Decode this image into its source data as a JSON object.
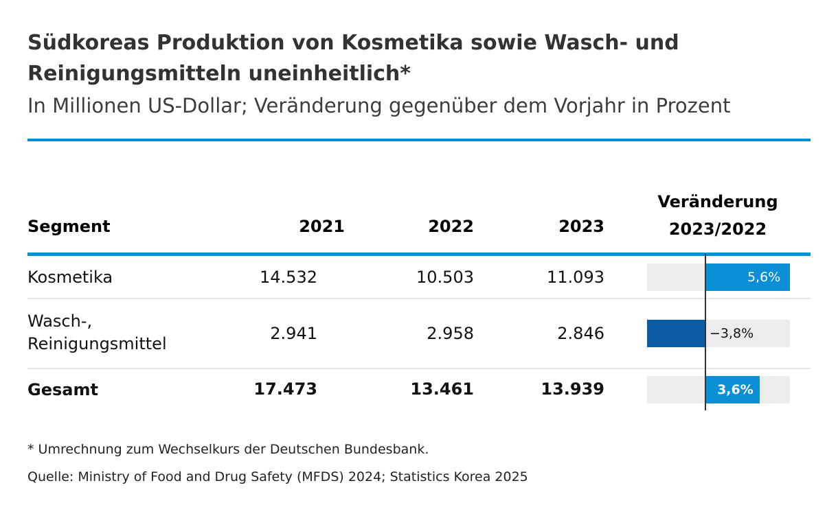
{
  "title": "Südkoreas Produktion von Kosmetika sowie Wasch- und Reinigungsmittelnuneinheitlich*",
  "title_line1": "Südkoreas Produktion von Kosmetika sowie Wasch- und",
  "title_line2": "Reinigungsmitteln uneinheitlich*",
  "subtitle": "In Millionen US-Dollar; Veränderung gegenüber dem Vorjahr in Prozent",
  "header": {
    "segment": "Segment",
    "y2021": "2021",
    "y2022": "2022",
    "y2023": "2023",
    "change_line1": "Veränderung",
    "change_line2": "2023/2022"
  },
  "rows": [
    {
      "label": "Kosmetika",
      "y2021": "14.532",
      "y2022": "10.503",
      "y2023": "11.093",
      "change": 5.6,
      "change_label": "5,6%"
    },
    {
      "label_line1": "Wasch-,",
      "label_line2": "Reinigungsmittel",
      "y2021": "2.941",
      "y2022": "2.958",
      "y2023": "2.846",
      "change": -3.8,
      "change_label": "−3,8%"
    },
    {
      "label": "Gesamt",
      "y2021": "17.473",
      "y2022": "13.461",
      "y2023": "13.939",
      "change": 3.6,
      "change_label": "3,6%"
    }
  ],
  "footnote": "* Umrechnung zum Wechselkurs der Deutschen Bundesbank.",
  "source": "Quelle: Ministry of Food and Drug Safety (MFDS) 2024; Statistics Korea 2025",
  "colors": {
    "accent": "#0092d4",
    "positive_bar": "#0a8fd6",
    "negative_bar": "#0a5aa6",
    "track": "#ececec"
  },
  "chart_data": {
    "type": "bar",
    "title": "Veränderung 2023/2022",
    "categories": [
      "Kosmetika",
      "Wasch-, Reinigungsmittel",
      "Gesamt"
    ],
    "values": [
      5.6,
      -3.8,
      3.6
    ],
    "xlim": [
      -4.5,
      6.5
    ],
    "unit": "%"
  }
}
